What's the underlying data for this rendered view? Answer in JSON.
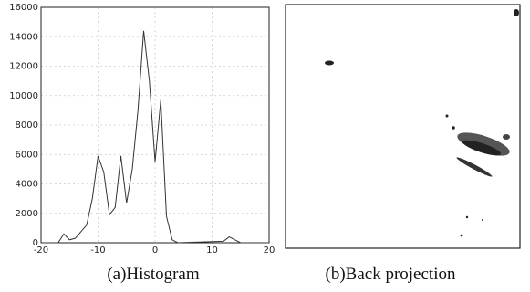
{
  "chart_data": {
    "type": "line",
    "caption": "(a)Histogram",
    "x": [
      -20,
      -17,
      -16,
      -15,
      -14,
      -12,
      -11,
      -10,
      -9,
      -8,
      -7,
      -6,
      -5,
      -4,
      -3,
      -2,
      -1,
      0,
      1,
      2,
      3,
      4,
      12,
      13,
      14,
      15,
      20
    ],
    "values": [
      0,
      0,
      600,
      200,
      300,
      1200,
      3000,
      5900,
      4800,
      1900,
      2400,
      5900,
      2700,
      5000,
      9000,
      14400,
      11000,
      5500,
      9700,
      1800,
      200,
      0,
      100,
      400,
      200,
      0,
      0
    ],
    "color": "#333333",
    "xlim": [
      -20,
      20
    ],
    "xticks": [
      -20,
      -10,
      0,
      10,
      20
    ],
    "ylim": [
      0,
      16000
    ],
    "yticks": [
      0,
      2000,
      4000,
      6000,
      8000,
      10000,
      12000,
      14000,
      16000
    ],
    "grid": true
  },
  "panel_b": {
    "caption": "(b)Back projection"
  }
}
